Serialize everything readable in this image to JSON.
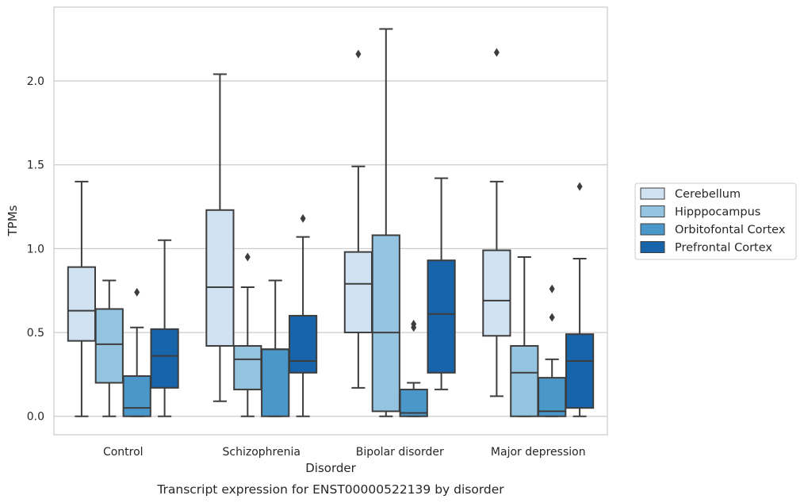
{
  "chart_data": {
    "type": "box",
    "caption": "Transcript expression for ENST00000522139 by disorder",
    "xlabel": "Disorder",
    "ylabel": "TPMs",
    "ylim": [
      -0.11,
      2.44
    ],
    "yticks": [
      0.0,
      0.5,
      1.0,
      1.5,
      2.0
    ],
    "ytick_labels": [
      "0.0",
      "0.5",
      "1.0",
      "1.5",
      "2.0"
    ],
    "grid": "horizontal",
    "legend_position": "right, outside plot",
    "categories": [
      "Control",
      "Schizophrenia",
      "Bipolar disorder",
      "Major depression"
    ],
    "series": [
      {
        "name": "Cerebellum",
        "color": "#d0e1f2",
        "boxes": [
          {
            "min": 0.0,
            "q1": 0.45,
            "median": 0.63,
            "q3": 0.89,
            "max": 1.4,
            "outliers": []
          },
          {
            "min": 0.09,
            "q1": 0.42,
            "median": 0.77,
            "q3": 1.23,
            "max": 2.04,
            "outliers": []
          },
          {
            "min": 0.17,
            "q1": 0.5,
            "median": 0.79,
            "q3": 0.98,
            "max": 1.49,
            "outliers": [
              2.16
            ]
          },
          {
            "min": 0.12,
            "q1": 0.48,
            "median": 0.69,
            "q3": 0.99,
            "max": 1.4,
            "outliers": [
              2.17
            ]
          }
        ]
      },
      {
        "name": "Hipppocampus",
        "color": "#94c4df",
        "boxes": [
          {
            "min": 0.0,
            "q1": 0.2,
            "median": 0.43,
            "q3": 0.64,
            "max": 0.81,
            "outliers": []
          },
          {
            "min": 0.0,
            "q1": 0.16,
            "median": 0.34,
            "q3": 0.42,
            "max": 0.77,
            "outliers": [
              0.95
            ]
          },
          {
            "min": 0.0,
            "q1": 0.03,
            "median": 0.5,
            "q3": 1.08,
            "max": 2.31,
            "outliers": []
          },
          {
            "min": 0.0,
            "q1": 0.0,
            "median": 0.26,
            "q3": 0.42,
            "max": 0.95,
            "outliers": []
          }
        ]
      },
      {
        "name": "Orbitofontal Cortex",
        "color": "#4a98c9",
        "boxes": [
          {
            "min": 0.0,
            "q1": 0.0,
            "median": 0.05,
            "q3": 0.24,
            "max": 0.53,
            "outliers": [
              0.74
            ]
          },
          {
            "min": 0.0,
            "q1": 0.0,
            "median": 0.4,
            "q3": 0.4,
            "max": 0.81,
            "outliers": []
          },
          {
            "min": 0.0,
            "q1": 0.0,
            "median": 0.02,
            "q3": 0.16,
            "max": 0.2,
            "outliers": [
              0.53,
              0.55
            ]
          },
          {
            "min": 0.0,
            "q1": 0.0,
            "median": 0.03,
            "q3": 0.23,
            "max": 0.34,
            "outliers": [
              0.59,
              0.76
            ]
          }
        ]
      },
      {
        "name": "Prefrontal Cortex",
        "color": "#1764ab",
        "boxes": [
          {
            "min": 0.0,
            "q1": 0.17,
            "median": 0.36,
            "q3": 0.52,
            "max": 1.05,
            "outliers": []
          },
          {
            "min": 0.0,
            "q1": 0.26,
            "median": 0.33,
            "q3": 0.6,
            "max": 1.07,
            "outliers": [
              1.18
            ]
          },
          {
            "min": 0.16,
            "q1": 0.26,
            "median": 0.61,
            "q3": 0.93,
            "max": 1.42,
            "outliers": []
          },
          {
            "min": 0.0,
            "q1": 0.05,
            "median": 0.33,
            "q3": 0.49,
            "max": 0.94,
            "outliers": [
              1.37
            ]
          }
        ]
      }
    ]
  }
}
